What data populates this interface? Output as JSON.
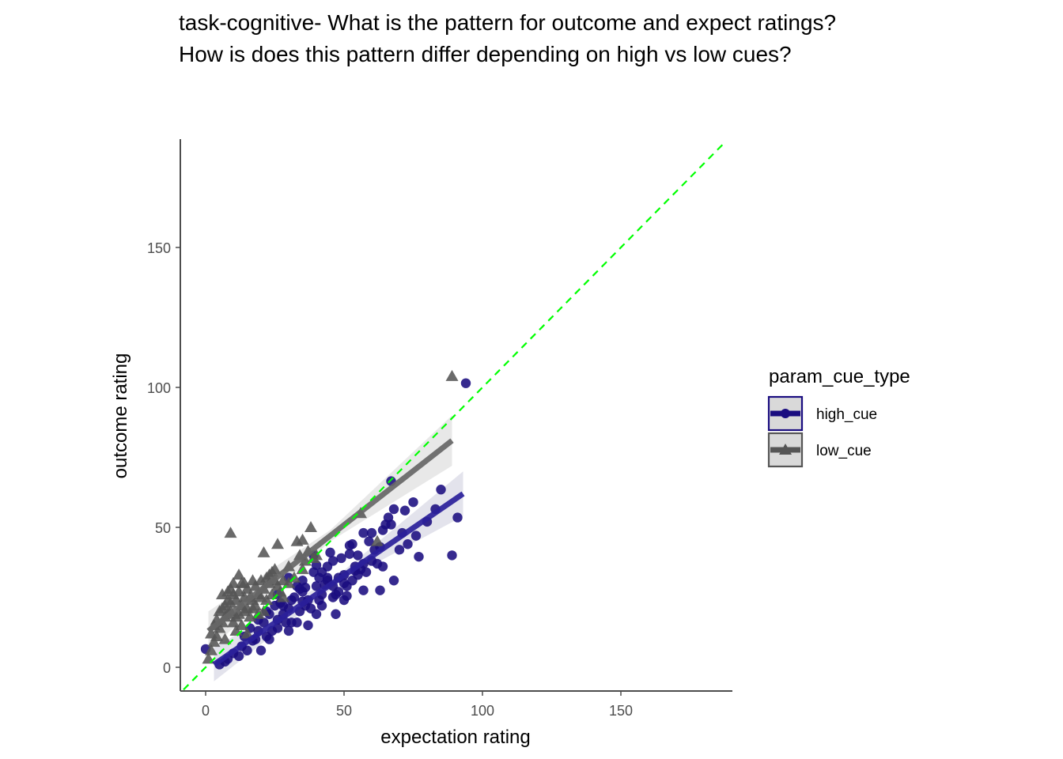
{
  "chart_data": {
    "type": "scatter",
    "title_lines": [
      "task-cognitive- What is the pattern for outcome and expect ratings?",
      "How is does this pattern differ depending on high vs low cues?"
    ],
    "xlabel": "expectation rating",
    "ylabel": "outcome rating",
    "xlim": [
      -8,
      187
    ],
    "ylim": [
      -8,
      189
    ],
    "xticks": [
      0,
      50,
      100,
      150
    ],
    "yticks": [
      0,
      50,
      100,
      150
    ],
    "grid": false,
    "identity_line": {
      "color": "#00ff00",
      "style": "dashed"
    },
    "legend": {
      "title": "param_cue_type",
      "placement": "right",
      "entries": [
        {
          "label": "high_cue",
          "shape": "circle",
          "color": "#1a0d80"
        },
        {
          "label": "low_cue",
          "shape": "triangle",
          "color": "#555555"
        }
      ]
    },
    "series": [
      {
        "name": "high_cue",
        "shape": "circle",
        "color": "#1a0d80",
        "fit": {
          "x": [
            3,
            93
          ],
          "y": [
            1,
            62
          ],
          "color": "#2a1f9a",
          "ci_color": "#d9d9e6"
        },
        "points": [
          [
            0,
            6.5
          ],
          [
            94,
            101.5
          ],
          [
            91,
            53.5
          ],
          [
            89,
            40
          ],
          [
            85,
            63.5
          ],
          [
            83,
            56.5
          ],
          [
            77,
            39.5
          ],
          [
            76,
            47
          ],
          [
            75,
            59
          ],
          [
            72,
            56
          ],
          [
            71,
            48
          ],
          [
            70,
            42
          ],
          [
            68,
            56.5
          ],
          [
            67,
            66.5
          ],
          [
            67,
            51
          ],
          [
            66,
            53.5
          ],
          [
            65,
            51
          ],
          [
            64,
            36
          ],
          [
            63,
            43
          ],
          [
            63,
            27.5
          ],
          [
            61,
            42
          ],
          [
            60,
            38
          ],
          [
            59,
            45
          ],
          [
            58,
            34
          ],
          [
            57,
            37
          ],
          [
            57,
            27.5
          ],
          [
            55,
            33
          ],
          [
            55,
            40
          ],
          [
            54,
            34.5
          ],
          [
            54,
            36
          ],
          [
            53,
            31
          ],
          [
            52,
            40.5
          ],
          [
            52,
            43.5
          ],
          [
            51,
            29
          ],
          [
            51,
            25.5
          ],
          [
            50,
            30
          ],
          [
            50,
            33
          ],
          [
            49,
            39
          ],
          [
            48,
            32
          ],
          [
            47,
            26
          ],
          [
            47,
            19
          ],
          [
            46,
            29
          ],
          [
            46,
            25
          ],
          [
            45,
            41
          ],
          [
            44,
            32
          ],
          [
            44,
            36
          ],
          [
            43,
            29.5
          ],
          [
            42,
            26
          ],
          [
            42,
            22
          ],
          [
            41,
            32
          ],
          [
            41,
            24
          ],
          [
            40,
            29
          ],
          [
            40,
            36.5
          ],
          [
            40,
            19
          ],
          [
            39,
            40
          ],
          [
            38,
            21
          ],
          [
            37,
            24
          ],
          [
            36,
            28.5
          ],
          [
            36,
            22
          ],
          [
            35,
            31
          ],
          [
            35,
            23.5
          ],
          [
            34,
            28
          ],
          [
            34,
            20
          ],
          [
            33,
            29
          ],
          [
            33,
            16
          ],
          [
            32,
            25
          ],
          [
            31,
            24
          ],
          [
            31,
            16
          ],
          [
            30,
            32
          ],
          [
            30,
            21
          ],
          [
            29,
            16
          ],
          [
            28,
            22
          ],
          [
            27,
            23
          ],
          [
            26,
            17
          ],
          [
            26,
            14
          ],
          [
            25,
            22
          ],
          [
            24,
            13
          ],
          [
            23,
            19
          ],
          [
            22,
            11
          ],
          [
            22,
            20
          ],
          [
            21,
            16
          ],
          [
            20,
            6
          ],
          [
            19,
            13
          ],
          [
            18,
            10
          ],
          [
            17,
            9.5
          ],
          [
            15,
            6
          ],
          [
            13,
            7.5
          ],
          [
            12,
            4
          ],
          [
            10,
            5
          ],
          [
            8,
            3
          ],
          [
            7,
            2
          ],
          [
            5,
            1
          ],
          [
            14,
            11
          ],
          [
            16,
            14
          ],
          [
            19,
            17
          ],
          [
            23,
            10
          ],
          [
            28,
            19
          ],
          [
            37,
            15
          ],
          [
            44,
            31
          ],
          [
            48,
            27
          ],
          [
            56,
            35
          ],
          [
            60,
            48
          ],
          [
            62,
            37
          ],
          [
            68,
            31
          ],
          [
            73,
            44
          ],
          [
            80,
            52
          ],
          [
            35,
            27
          ],
          [
            42,
            34
          ],
          [
            53,
            44
          ],
          [
            46,
            38
          ],
          [
            57,
            48
          ],
          [
            64,
            49
          ],
          [
            50,
            24
          ],
          [
            39,
            34
          ],
          [
            26,
            26
          ],
          [
            30,
            13
          ]
        ]
      },
      {
        "name": "low_cue",
        "shape": "triangle",
        "color": "#555555",
        "fit": {
          "x": [
            1,
            89
          ],
          "y": [
            13,
            81
          ],
          "color": "#666666",
          "ci_color": "#e0e0e0"
        },
        "points": [
          [
            89,
            104
          ],
          [
            56,
            55
          ],
          [
            62,
            45
          ],
          [
            38,
            50
          ],
          [
            35,
            45.5
          ],
          [
            33,
            45
          ],
          [
            26,
            44
          ],
          [
            21,
            41
          ],
          [
            9,
            48
          ],
          [
            39,
            39
          ],
          [
            37,
            41.5
          ],
          [
            40,
            40
          ],
          [
            35,
            35
          ],
          [
            32,
            32
          ],
          [
            30,
            30
          ],
          [
            28,
            31
          ],
          [
            27,
            27
          ],
          [
            26,
            29
          ],
          [
            25,
            31
          ],
          [
            24,
            26
          ],
          [
            23,
            30
          ],
          [
            22,
            32
          ],
          [
            21,
            28
          ],
          [
            20,
            25
          ],
          [
            20,
            31
          ],
          [
            19,
            26
          ],
          [
            18,
            29
          ],
          [
            17,
            24
          ],
          [
            17,
            31
          ],
          [
            16,
            25
          ],
          [
            15,
            28
          ],
          [
            15,
            21
          ],
          [
            14,
            20
          ],
          [
            14,
            25
          ],
          [
            13,
            30
          ],
          [
            13,
            22
          ],
          [
            12,
            19
          ],
          [
            12,
            27
          ],
          [
            11,
            18
          ],
          [
            11,
            24
          ],
          [
            10,
            30
          ],
          [
            10,
            26
          ],
          [
            9,
            20
          ],
          [
            9,
            28
          ],
          [
            8,
            19
          ],
          [
            8,
            24
          ],
          [
            7,
            22
          ],
          [
            7,
            18
          ],
          [
            6,
            26
          ],
          [
            6,
            16
          ],
          [
            5,
            20
          ],
          [
            5,
            14
          ],
          [
            4,
            17
          ],
          [
            4,
            11
          ],
          [
            3,
            15
          ],
          [
            3,
            9
          ],
          [
            2,
            6
          ],
          [
            2,
            12
          ],
          [
            1,
            3
          ],
          [
            12,
            33
          ],
          [
            14,
            30
          ],
          [
            10,
            16
          ],
          [
            16,
            18
          ],
          [
            18,
            22
          ],
          [
            19,
            19
          ],
          [
            11,
            13
          ],
          [
            7,
            10
          ],
          [
            23,
            33
          ],
          [
            25,
            35
          ],
          [
            30,
            36
          ],
          [
            36,
            38
          ],
          [
            15,
            12
          ],
          [
            13,
            15
          ],
          [
            22,
            24
          ],
          [
            28,
            25
          ],
          [
            34,
            40
          ],
          [
            9,
            23
          ],
          [
            6,
            21
          ],
          [
            8,
            27
          ],
          [
            17,
            21
          ],
          [
            21,
            20
          ],
          [
            24,
            34
          ]
        ]
      }
    ]
  }
}
